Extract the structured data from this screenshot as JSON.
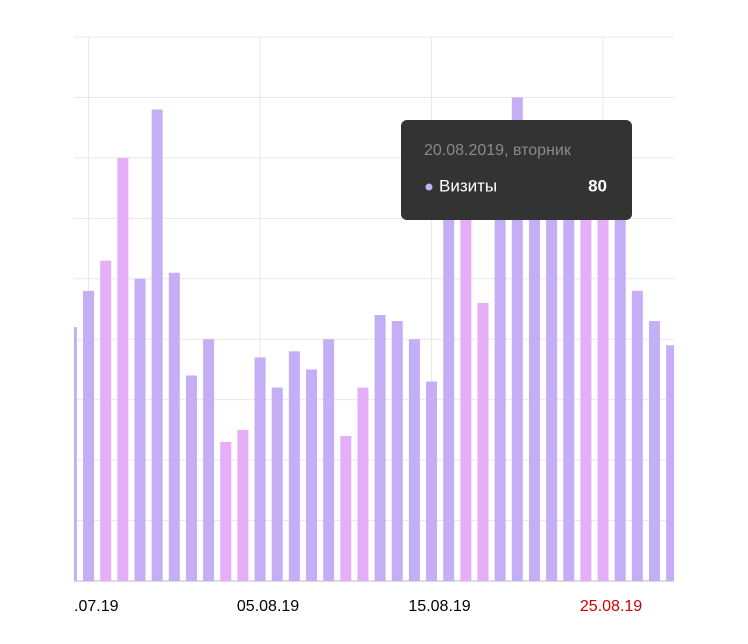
{
  "chart_data": {
    "type": "bar",
    "categories": [
      null,
      null,
      null,
      null,
      null,
      null,
      null,
      null,
      null,
      null,
      null,
      null,
      null,
      null,
      null,
      null,
      null,
      null,
      null,
      null,
      null,
      null,
      null,
      null,
      null,
      null,
      null,
      null,
      null,
      null,
      null,
      null,
      null,
      null,
      null,
      null
    ],
    "series": [
      {
        "name": "Визиты",
        "color": "#c4aef6",
        "values": [
          42,
          48,
          53,
          70,
          50,
          78,
          51,
          34,
          40,
          23,
          25,
          37,
          32,
          38,
          35,
          40,
          24,
          32,
          44,
          43,
          40,
          33,
          65,
          62,
          46,
          70,
          80,
          72,
          70,
          68,
          65,
          64,
          62,
          48,
          43,
          39
        ]
      }
    ],
    "bar_colors": [
      "#c4aef6",
      "#c4aef6",
      "#e6aef6",
      "#e6aef6",
      "#c4aef6",
      "#c4aef6",
      "#c4aef6",
      "#c4aef6",
      "#c4aef6",
      "#e6aef6",
      "#e6aef6",
      "#c4aef6",
      "#c4aef6",
      "#c4aef6",
      "#c4aef6",
      "#c4aef6",
      "#e6aef6",
      "#e6aef6",
      "#c4aef6",
      "#c4aef6",
      "#c4aef6",
      "#c4aef6",
      "#c4aef6",
      "#e6aef6",
      "#e6aef6",
      "#c4aef6",
      "#c4aef6",
      "#c4aef6",
      "#c4aef6",
      "#c4aef6",
      "#e6aef6",
      "#e6aef6",
      "#c4aef6",
      "#c4aef6",
      "#c4aef6",
      "#c4aef6"
    ],
    "ylim": [
      0,
      90
    ],
    "yticks": [
      0,
      10,
      20,
      30,
      40,
      50,
      60,
      70,
      80,
      90
    ],
    "grid": true,
    "xticks": [
      {
        "value": 1,
        "label": ".07.19"
      },
      {
        "value": 11,
        "label": "05.08.19"
      },
      {
        "value": 21,
        "label": "15.08.19"
      },
      {
        "value": 31,
        "label": "25.08.19"
      }
    ],
    "xtick_colors": [
      "#000000",
      "#000000",
      "#000000",
      "#cc0000"
    ],
    "tooltip": {
      "title": "20.08.2019, вторник",
      "series": "Визиты",
      "value": 80,
      "index": 26
    }
  }
}
